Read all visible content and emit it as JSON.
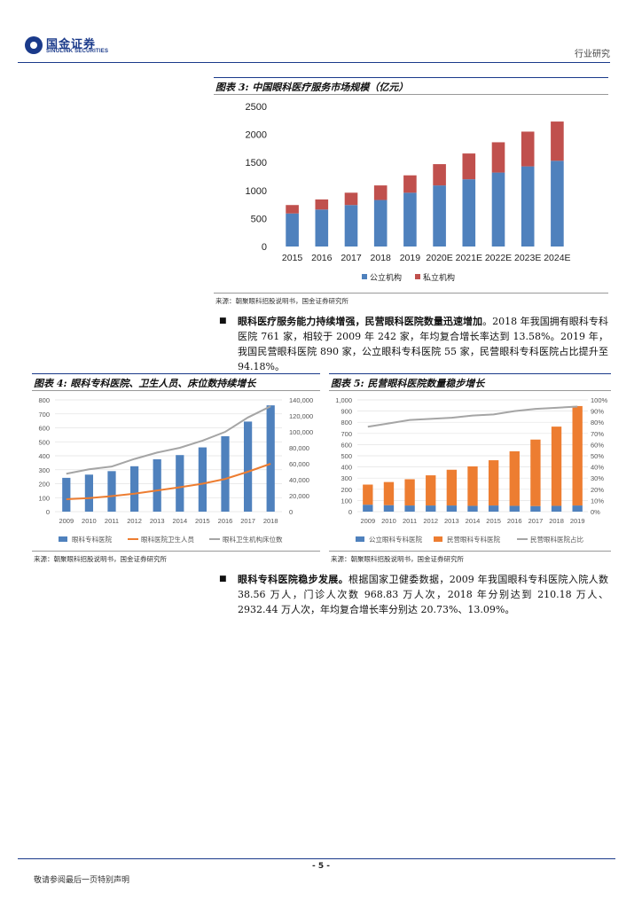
{
  "header": {
    "logo_cn": "国金证券",
    "logo_en": "SINOLINK SECURITIES",
    "section": "行业研究"
  },
  "figure3": {
    "title": "图表 3: 中国眼科医疗服务市场规模（亿元）",
    "source": "来源：朝聚眼科招股说明书，国金证券研究所"
  },
  "para1": {
    "lead": "眼科医疗服务能力持续增强，民营眼科医院数量迅速增加",
    "text": "。2018 年我国拥有眼科专科医院 761 家，相较于 2009 年 242 家，年均复合增长率达到 13.58%。2019 年，我国民营眼科医院 890 家，公立眼科专科医院 55 家，民营眼科专科医院占比提升至 94.18%。"
  },
  "figure4": {
    "title": "图表 4: 眼科专科医院、卫生人员、床位数持续增长",
    "source": "来源：朝聚眼科招股说明书，国金证券研究所"
  },
  "figure5": {
    "title": "图表 5: 民营眼科医院数量稳步增长",
    "source": "来源：朝聚眼科招股说明书，国金证券研究所"
  },
  "para2": {
    "lead": "眼科专科医院稳步发展。",
    "text": "根据国家卫健委数据，2009 年我国眼科专科医院入院人数 38.56 万人，门诊人次数 968.83 万人次，2018 年分别达到 210.18 万人、2932.44 万人次，年均复合增长率分别达 20.73%、13.09%。"
  },
  "footer": {
    "page": "- 5 -",
    "disclaimer": "敬请参阅最后一页特别声明"
  },
  "colors": {
    "blue": "#4f81bd",
    "red": "#c0504d",
    "orange": "#ed7d31",
    "gray": "#a5a5a5",
    "navy": "#1a3a8a"
  },
  "chart_data": [
    {
      "type": "bar",
      "stacked": true,
      "categories": [
        "2015",
        "2016",
        "2017",
        "2018",
        "2019",
        "2020E",
        "2021E",
        "2022E",
        "2023E",
        "2024E"
      ],
      "series": [
        {
          "name": "公立机构",
          "values": [
            590,
            660,
            740,
            830,
            960,
            1090,
            1200,
            1320,
            1430,
            1530
          ]
        },
        {
          "name": "私立机构",
          "values": [
            150,
            180,
            220,
            260,
            310,
            380,
            460,
            540,
            620,
            700
          ]
        }
      ],
      "ylim": [
        0,
        2500
      ],
      "yticks": [
        0,
        500,
        1000,
        1500,
        2000,
        2500
      ],
      "legend": "bottom",
      "grid": true
    },
    {
      "type": "bar",
      "categories": [
        "2009",
        "2010",
        "2011",
        "2012",
        "2013",
        "2014",
        "2015",
        "2016",
        "2017",
        "2018"
      ],
      "series": [
        {
          "name": "眼科专科医院",
          "type": "bar",
          "axis": "left",
          "values": [
            242,
            265,
            290,
            325,
            375,
            405,
            460,
            540,
            645,
            761
          ]
        },
        {
          "name": "眼科医院卫生人员",
          "type": "line",
          "axis": "right",
          "values": [
            15500,
            17000,
            19500,
            22500,
            26500,
            30500,
            35000,
            41000,
            50000,
            60000
          ]
        },
        {
          "name": "眼科卫生机构床位数",
          "type": "line",
          "axis": "right",
          "values": [
            47500,
            53000,
            56500,
            66000,
            74000,
            80000,
            89000,
            100000,
            118000,
            132000
          ]
        }
      ],
      "ylim_left": [
        0,
        800
      ],
      "yticks_left": [
        0,
        100,
        200,
        300,
        400,
        500,
        600,
        700,
        800
      ],
      "ylim_right": [
        0,
        140000
      ],
      "yticks_right": [
        "0",
        "20,000",
        "40,000",
        "60,000",
        "80,000",
        "100,000",
        "120,000",
        "140,000"
      ],
      "legend": "bottom",
      "grid": true
    },
    {
      "type": "bar",
      "stacked": true,
      "categories": [
        "2009",
        "2010",
        "2011",
        "2012",
        "2013",
        "2014",
        "2015",
        "2016",
        "2017",
        "2018",
        "2019"
      ],
      "series": [
        {
          "name": "公立眼科专科医院",
          "type": "bar",
          "axis": "left",
          "values": [
            62,
            58,
            55,
            55,
            55,
            52,
            55,
            52,
            50,
            52,
            55
          ]
        },
        {
          "name": "民营眼科专科医院",
          "type": "bar",
          "axis": "left",
          "values": [
            180,
            207,
            235,
            270,
            320,
            353,
            405,
            488,
            595,
            709,
            890
          ]
        },
        {
          "name": "民营眼科医院占比",
          "type": "line",
          "axis": "right",
          "values": [
            0.76,
            0.79,
            0.82,
            0.83,
            0.84,
            0.86,
            0.87,
            0.9,
            0.92,
            0.93,
            0.94
          ]
        }
      ],
      "ylim_left": [
        0,
        1000
      ],
      "yticks_left": [
        "0",
        "100",
        "200",
        "300",
        "400",
        "500",
        "600",
        "700",
        "800",
        "900",
        "1,000"
      ],
      "ylim_right": [
        0,
        1
      ],
      "yticks_right": [
        "0%",
        "10%",
        "20%",
        "30%",
        "40%",
        "50%",
        "60%",
        "70%",
        "80%",
        "90%",
        "100%"
      ],
      "legend": "bottom",
      "grid": true
    }
  ]
}
